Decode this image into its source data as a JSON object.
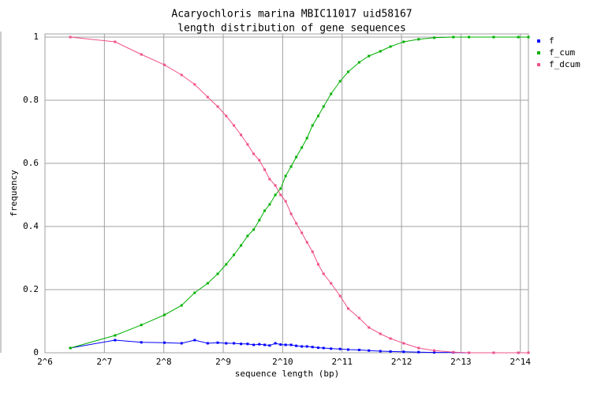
{
  "chart_data": {
    "type": "line",
    "title": "Acaryochloris marina MBIC11017 uid58167",
    "subtitle": "length distribution of gene sequences",
    "xlabel": "sequence length (bp)",
    "ylabel": "frequency",
    "xscale": "log2",
    "grid": true,
    "legend": "top-right-outside",
    "xlim": [
      64,
      18000
    ],
    "ylim": [
      0,
      1.01
    ],
    "xticks": [
      {
        "value": 64,
        "label": "2^6"
      },
      {
        "value": 128,
        "label": "2^7"
      },
      {
        "value": 256,
        "label": "2^8"
      },
      {
        "value": 512,
        "label": "2^9"
      },
      {
        "value": 1024,
        "label": "2^10"
      },
      {
        "value": 2048,
        "label": "2^11"
      },
      {
        "value": 4096,
        "label": "2^12"
      },
      {
        "value": 8192,
        "label": "2^13"
      },
      {
        "value": 16384,
        "label": "2^14"
      }
    ],
    "yticks": [
      0,
      0.2,
      0.4,
      0.6,
      0.8,
      1
    ],
    "x": [
      86,
      145,
      197,
      258,
      315,
      367,
      427,
      480,
      530,
      580,
      630,
      680,
      730,
      780,
      830,
      880,
      940,
      1000,
      1060,
      1130,
      1200,
      1280,
      1360,
      1450,
      1550,
      1650,
      1800,
      2000,
      2200,
      2500,
      2800,
      3200,
      3600,
      4200,
      5000,
      6000,
      7500,
      9000,
      12000,
      16000,
      18000
    ],
    "series": [
      {
        "name": "f",
        "color": "#0000ff",
        "values": [
          0.015,
          0.04,
          0.033,
          0.032,
          0.03,
          0.04,
          0.03,
          0.032,
          0.03,
          0.03,
          0.028,
          0.028,
          0.025,
          0.027,
          0.025,
          0.023,
          0.03,
          0.026,
          0.025,
          0.025,
          0.022,
          0.02,
          0.02,
          0.018,
          0.016,
          0.015,
          0.013,
          0.012,
          0.01,
          0.009,
          0.007,
          0.005,
          0.004,
          0.003,
          0.002,
          0.001,
          0.001,
          0,
          0,
          0,
          0
        ]
      },
      {
        "name": "f_cum",
        "color": "#00b000",
        "values": [
          0.015,
          0.055,
          0.088,
          0.12,
          0.15,
          0.19,
          0.22,
          0.25,
          0.28,
          0.31,
          0.34,
          0.37,
          0.39,
          0.42,
          0.45,
          0.47,
          0.5,
          0.52,
          0.56,
          0.59,
          0.62,
          0.65,
          0.68,
          0.72,
          0.75,
          0.78,
          0.82,
          0.86,
          0.89,
          0.92,
          0.94,
          0.955,
          0.97,
          0.985,
          0.993,
          0.998,
          1,
          1,
          1,
          1,
          1
        ]
      },
      {
        "name": "f_dcum",
        "color": "#f0508a",
        "values": [
          1,
          0.985,
          0.945,
          0.912,
          0.88,
          0.85,
          0.81,
          0.78,
          0.75,
          0.72,
          0.69,
          0.66,
          0.63,
          0.61,
          0.58,
          0.55,
          0.53,
          0.5,
          0.48,
          0.44,
          0.41,
          0.38,
          0.35,
          0.32,
          0.28,
          0.25,
          0.22,
          0.18,
          0.14,
          0.11,
          0.08,
          0.06,
          0.045,
          0.03,
          0.015,
          0.007,
          0.002,
          0,
          0,
          0,
          0
        ]
      }
    ]
  }
}
